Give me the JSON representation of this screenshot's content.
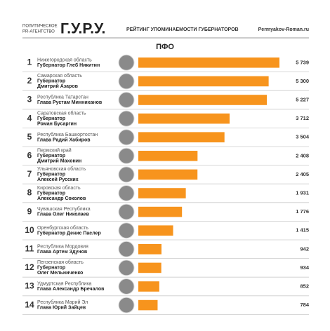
{
  "header": {
    "agency_line1": "ПОЛИТИЧЕСКОЕ",
    "agency_line2": "PR-АГЕНТСТВО",
    "logo": "Г.У.Р.У.",
    "heading": "РЕЙТИНГ УПОМИНАЕМОСТИ ГУБЕРНАТОРОВ",
    "site": "Permyakov-Roman.ru"
  },
  "chart_data": {
    "type": "bar",
    "title": "ПФО",
    "color": "#f7941d",
    "ranks": [
      1,
      2,
      3,
      4,
      5,
      6,
      7,
      8,
      9,
      10,
      11,
      12,
      13,
      14
    ],
    "categories": [
      "Нижегородская область",
      "Самарская область",
      "Республика Татарстан",
      "Саратовская область",
      "Республика Башкортостан",
      "Пермский край",
      "Ульяновская область",
      "Кировская область",
      "Чувашская Республика",
      "Оренбургская область",
      "Республика Мордовия",
      "Пензенская область",
      "Удмуртская Республика",
      "Республика Марий Эл"
    ],
    "governors": [
      [
        "Губернатор Глеб Никитин"
      ],
      [
        "Губернатор",
        "Дмитрий Азаров"
      ],
      [
        "Глава Рустам Минниханов"
      ],
      [
        "Губернатор",
        "Роман Бусаргин"
      ],
      [
        "Глава Радий Хабиров"
      ],
      [
        "Губернатор",
        "Дмитрий Махонин"
      ],
      [
        "Губернатор",
        "Алексей Русских"
      ],
      [
        "Губернатор",
        "Александр Соколов"
      ],
      [
        "Глава Олег Николаев"
      ],
      [
        "Губернатор Денис Паслер"
      ],
      [
        "Глава Артем Здунов"
      ],
      [
        "Губернатор",
        "Олег Мельниченко"
      ],
      [
        "Глава Александр Бречалов"
      ],
      [
        "Глава Юрий Зайцев"
      ]
    ],
    "values": [
      5739,
      5300,
      5227,
      3712,
      3504,
      2408,
      2405,
      1931,
      1776,
      1415,
      942,
      934,
      852,
      784
    ],
    "value_labels": [
      "5 739",
      "5 300",
      "5 227",
      "3 712",
      "3 504",
      "2 408",
      "2 405",
      "1 931",
      "1 776",
      "1 415",
      "942",
      "934",
      "852",
      "784"
    ]
  }
}
